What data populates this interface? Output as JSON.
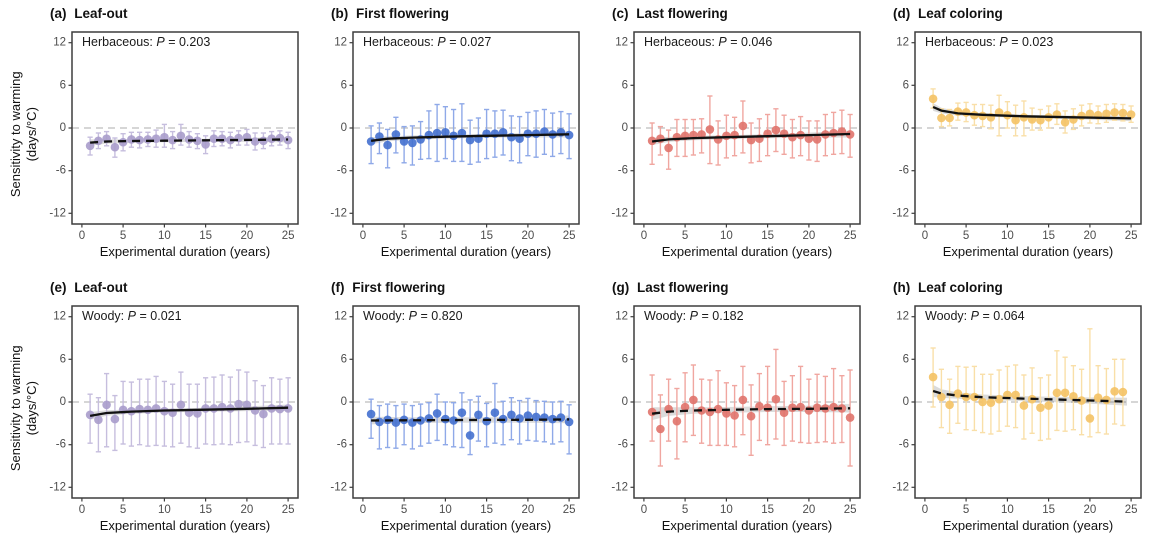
{
  "axes": {
    "xlabel": "Experimental duration (years)",
    "ylabel_line1": "Sensitivity to warming",
    "ylabel_line2": "(days/°C)",
    "x_ticks": [
      0,
      5,
      10,
      15,
      20,
      25
    ],
    "y_ticks": [
      12,
      6,
      0,
      -6,
      -12
    ],
    "xlim": [
      -1.2,
      26.2
    ],
    "ylim": [
      -13.5,
      13.5
    ],
    "zero_line_color": "#bdbdbd",
    "border_color": "#3d3d3d",
    "tick_text_color": "#4d4d4d",
    "trend_color": "#111111",
    "band_color": "rgba(110,110,110,0.25)"
  },
  "chart_data": [
    {
      "type": "scatter",
      "panel_label": "(a)",
      "title": "Leaf-out",
      "annotation": {
        "group": "Herbaceous:",
        "p_label": "P",
        "eq": "=",
        "p_value": "0.203"
      },
      "colors": {
        "point": "#a89ccb",
        "bar": "#c6bede"
      },
      "trend": {
        "style": "dashed",
        "points": [
          [
            1,
            -2.05,
            0.45
          ],
          [
            3,
            -1.9,
            0.3
          ],
          [
            6,
            -1.83,
            0.25
          ],
          [
            10,
            -1.78,
            0.22
          ],
          [
            15,
            -1.73,
            0.22
          ],
          [
            20,
            -1.68,
            0.28
          ],
          [
            25,
            -1.62,
            0.4
          ]
        ]
      },
      "x": [
        1,
        2,
        3,
        4,
        5,
        6,
        7,
        8,
        9,
        10,
        11,
        12,
        13,
        14,
        15,
        16,
        17,
        18,
        19,
        20,
        21,
        22,
        23,
        24,
        25
      ],
      "y": [
        -2.5,
        -1.8,
        -1.5,
        -2.7,
        -2.0,
        -1.6,
        -1.7,
        -1.6,
        -1.5,
        -1.3,
        -1.7,
        -1.1,
        -1.6,
        -1.8,
        -2.3,
        -1.5,
        -1.5,
        -1.7,
        -1.4,
        -1.3,
        -1.9,
        -1.8,
        -1.5,
        -1.4,
        -1.7
      ],
      "err_up": [
        1.2,
        1.1,
        1.0,
        1.3,
        1.2,
        1.0,
        1.1,
        1.0,
        1.2,
        1.8,
        1.2,
        1.6,
        1.1,
        1.0,
        1.2,
        1.1,
        1.0,
        1.1,
        1.0,
        1.1,
        1.2,
        1.1,
        1.0,
        1.0,
        1.1
      ],
      "err_dn": [
        1.3,
        1.1,
        1.0,
        1.4,
        1.2,
        1.1,
        1.1,
        1.0,
        1.2,
        1.4,
        1.2,
        1.3,
        1.1,
        1.1,
        1.3,
        1.1,
        1.0,
        1.1,
        1.0,
        1.1,
        1.2,
        1.1,
        1.0,
        1.0,
        1.2
      ]
    },
    {
      "type": "scatter",
      "panel_label": "(b)",
      "title": "First flowering",
      "annotation": {
        "group": "Herbaceous:",
        "p_label": "P",
        "eq": "=",
        "p_value": "0.027"
      },
      "colors": {
        "point": "#4470cf",
        "bar": "#8fa9e8"
      },
      "trend": {
        "style": "solid",
        "points": [
          [
            1,
            -1.8,
            0.5
          ],
          [
            3,
            -1.5,
            0.35
          ],
          [
            6,
            -1.35,
            0.3
          ],
          [
            10,
            -1.22,
            0.27
          ],
          [
            15,
            -1.1,
            0.27
          ],
          [
            20,
            -1.0,
            0.33
          ],
          [
            25,
            -0.88,
            0.45
          ]
        ]
      },
      "x": [
        1,
        2,
        3,
        4,
        5,
        6,
        7,
        8,
        9,
        10,
        11,
        12,
        13,
        14,
        15,
        16,
        17,
        18,
        19,
        20,
        21,
        22,
        23,
        24,
        25
      ],
      "y": [
        -1.9,
        -1.2,
        -2.4,
        -0.9,
        -1.9,
        -2.1,
        -1.6,
        -1.0,
        -0.7,
        -0.6,
        -1.1,
        -0.7,
        -1.7,
        -1.5,
        -0.8,
        -0.8,
        -0.6,
        -1.3,
        -1.5,
        -0.8,
        -0.8,
        -0.5,
        -0.9,
        -0.6,
        -1.0
      ],
      "err_up": [
        2.2,
        1.9,
        2.2,
        2.4,
        2.1,
        2.4,
        2.5,
        3.4,
        4.0,
        3.6,
        3.7,
        4.1,
        2.8,
        2.9,
        3.4,
        3.2,
        3.1,
        3.0,
        3.1,
        3.0,
        3.2,
        3.1,
        3.0,
        2.9,
        3.0
      ],
      "err_dn": [
        3.1,
        2.4,
        3.2,
        2.6,
        3.0,
        3.1,
        2.8,
        3.3,
        4.0,
        3.7,
        3.6,
        4.0,
        3.4,
        3.3,
        3.5,
        3.3,
        3.2,
        3.3,
        3.4,
        3.1,
        3.3,
        3.2,
        3.1,
        3.0,
        3.3
      ]
    },
    {
      "type": "scatter",
      "panel_label": "(c)",
      "title": "Last flowering",
      "annotation": {
        "group": "Herbaceous:",
        "p_label": "P",
        "eq": "=",
        "p_value": "0.046"
      },
      "colors": {
        "point": "#e0736b",
        "bar": "#f0a6a0"
      },
      "trend": {
        "style": "solid",
        "points": [
          [
            1,
            -1.9,
            0.5
          ],
          [
            3,
            -1.6,
            0.35
          ],
          [
            6,
            -1.42,
            0.3
          ],
          [
            10,
            -1.3,
            0.28
          ],
          [
            15,
            -1.15,
            0.28
          ],
          [
            20,
            -1.0,
            0.35
          ],
          [
            25,
            -0.85,
            0.48
          ]
        ]
      },
      "x": [
        1,
        2,
        3,
        4,
        5,
        6,
        7,
        8,
        9,
        10,
        11,
        12,
        13,
        14,
        15,
        16,
        17,
        18,
        19,
        20,
        21,
        22,
        23,
        24,
        25
      ],
      "y": [
        -1.8,
        -1.5,
        -2.8,
        -1.3,
        -1.1,
        -1.0,
        -0.9,
        -0.2,
        -1.6,
        -1.1,
        -1.0,
        0.3,
        -1.7,
        -1.5,
        -0.8,
        -0.3,
        -0.8,
        -1.3,
        -1.0,
        -1.5,
        -1.6,
        -0.9,
        -0.7,
        -0.5,
        -0.9
      ],
      "err_up": [
        2.5,
        1.7,
        2.5,
        2.5,
        2.3,
        2.2,
        2.2,
        4.7,
        2.6,
        2.9,
        2.5,
        3.5,
        2.4,
        2.8,
        2.7,
        3.0,
        2.6,
        2.5,
        2.6,
        2.5,
        2.6,
        2.8,
        2.9,
        3.0,
        2.8
      ],
      "err_dn": [
        3.3,
        2.3,
        3.0,
        2.7,
        2.9,
        2.8,
        2.6,
        4.8,
        3.6,
        3.1,
        2.9,
        3.8,
        3.2,
        3.2,
        3.1,
        3.0,
        2.9,
        2.9,
        2.9,
        3.0,
        3.1,
        3.0,
        3.0,
        3.1,
        3.2
      ]
    },
    {
      "type": "scatter",
      "panel_label": "(d)",
      "title": "Leaf coloring",
      "annotation": {
        "group": "Herbaceous:",
        "p_label": "P",
        "eq": "=",
        "p_value": "0.023"
      },
      "colors": {
        "point": "#f4c264",
        "bar": "#f9dfa8"
      },
      "trend": {
        "style": "solid",
        "points": [
          [
            1,
            2.95,
            0.55
          ],
          [
            2,
            2.45,
            0.4
          ],
          [
            4,
            2.05,
            0.3
          ],
          [
            7,
            1.85,
            0.25
          ],
          [
            12,
            1.65,
            0.22
          ],
          [
            18,
            1.5,
            0.25
          ],
          [
            25,
            1.35,
            0.38
          ]
        ]
      },
      "x": [
        1,
        2,
        3,
        4,
        5,
        6,
        7,
        8,
        9,
        10,
        11,
        12,
        13,
        14,
        15,
        16,
        17,
        18,
        19,
        20,
        21,
        22,
        23,
        24,
        25
      ],
      "y": [
        4.1,
        1.4,
        1.4,
        2.3,
        2.2,
        1.8,
        1.7,
        1.5,
        2.2,
        1.8,
        1.1,
        1.5,
        1.2,
        1.1,
        1.5,
        1.9,
        0.8,
        1.2,
        1.7,
        2.0,
        1.8,
        2.0,
        2.2,
        2.1,
        1.9
      ],
      "err_up": [
        1.4,
        1.3,
        1.2,
        1.2,
        1.4,
        1.5,
        1.6,
        1.7,
        2.4,
        1.9,
        2.1,
        2.3,
        1.6,
        1.5,
        1.6,
        1.5,
        1.6,
        1.5,
        1.5,
        1.4,
        1.3,
        1.3,
        1.2,
        1.2,
        1.2
      ],
      "err_dn": [
        1.3,
        1.2,
        1.1,
        1.2,
        1.3,
        1.4,
        1.5,
        1.6,
        3.3,
        1.8,
        2.2,
        2.6,
        1.5,
        1.4,
        1.5,
        1.4,
        1.5,
        1.4,
        1.4,
        1.3,
        1.2,
        1.2,
        1.1,
        1.1,
        1.1
      ]
    },
    {
      "type": "scatter",
      "panel_label": "(e)",
      "title": "Leaf-out",
      "annotation": {
        "group": "Woody:",
        "p_label": "P",
        "eq": "=",
        "p_value": "0.021"
      },
      "colors": {
        "point": "#a89ccb",
        "bar": "#c6bede"
      },
      "trend": {
        "style": "solid",
        "points": [
          [
            1,
            -1.95,
            0.55
          ],
          [
            3,
            -1.55,
            0.38
          ],
          [
            6,
            -1.35,
            0.3
          ],
          [
            10,
            -1.2,
            0.27
          ],
          [
            15,
            -1.08,
            0.27
          ],
          [
            20,
            -0.95,
            0.33
          ],
          [
            25,
            -0.8,
            0.45
          ]
        ]
      },
      "x": [
        1,
        2,
        3,
        4,
        5,
        6,
        7,
        8,
        9,
        10,
        11,
        12,
        13,
        14,
        15,
        16,
        17,
        18,
        19,
        20,
        21,
        22,
        23,
        24,
        25
      ],
      "y": [
        -1.8,
        -2.5,
        -0.4,
        -2.4,
        -1.1,
        -1.3,
        -1.0,
        -1.1,
        -0.9,
        -1.3,
        -1.5,
        -0.4,
        -1.5,
        -1.6,
        -0.9,
        -0.9,
        -0.7,
        -0.9,
        -0.3,
        -0.4,
        -1.2,
        -1.7,
        -0.9,
        -1.0,
        -0.9
      ],
      "err_up": [
        2.9,
        3.1,
        4.4,
        3.3,
        4.0,
        4.1,
        4.2,
        4.3,
        4.5,
        4.2,
        4.0,
        4.6,
        4.0,
        4.1,
        4.3,
        4.4,
        4.5,
        4.4,
        4.8,
        4.6,
        4.2,
        4.0,
        4.3,
        4.2,
        4.3
      ],
      "err_dn": [
        4.0,
        4.5,
        5.9,
        4.4,
        4.8,
        4.9,
        5.0,
        5.1,
        5.2,
        4.9,
        4.8,
        5.4,
        4.8,
        4.9,
        5.0,
        5.1,
        5.2,
        5.1,
        5.4,
        5.2,
        4.9,
        4.7,
        5.0,
        4.9,
        5.0
      ]
    },
    {
      "type": "scatter",
      "panel_label": "(f)",
      "title": "First flowering",
      "annotation": {
        "group": "Woody:",
        "p_label": "P",
        "eq": "=",
        "p_value": "0.820"
      },
      "colors": {
        "point": "#4470cf",
        "bar": "#8fa9e8"
      },
      "trend": {
        "style": "dashed",
        "points": [
          [
            1,
            -2.6,
            0.55
          ],
          [
            5,
            -2.57,
            0.42
          ],
          [
            10,
            -2.55,
            0.38
          ],
          [
            15,
            -2.52,
            0.38
          ],
          [
            20,
            -2.5,
            0.42
          ],
          [
            25,
            -2.45,
            0.55
          ]
        ]
      },
      "x": [
        1,
        2,
        3,
        4,
        5,
        6,
        7,
        8,
        9,
        10,
        11,
        12,
        13,
        14,
        15,
        16,
        17,
        18,
        19,
        20,
        21,
        22,
        23,
        24,
        25
      ],
      "y": [
        -1.7,
        -2.8,
        -2.5,
        -2.9,
        -2.5,
        -2.9,
        -2.6,
        -2.3,
        -1.6,
        -2.4,
        -2.6,
        -1.5,
        -4.7,
        -1.8,
        -2.7,
        -1.5,
        -2.4,
        -1.8,
        -2.3,
        -1.9,
        -2.1,
        -2.2,
        -2.4,
        -2.2,
        -2.8
      ],
      "err_up": [
        2.1,
        2.3,
        2.2,
        2.4,
        2.2,
        2.4,
        2.3,
        2.2,
        2.7,
        2.4,
        2.5,
        2.8,
        5.0,
        2.6,
        2.5,
        4.1,
        2.5,
        2.4,
        2.5,
        2.4,
        2.3,
        2.3,
        2.4,
        2.3,
        2.4
      ],
      "err_dn": [
        3.4,
        3.8,
        3.9,
        3.6,
        3.5,
        3.7,
        3.6,
        3.5,
        3.8,
        3.6,
        3.7,
        4.9,
        2.7,
        3.7,
        3.6,
        4.3,
        3.6,
        3.5,
        3.6,
        3.5,
        3.4,
        3.4,
        3.5,
        3.4,
        4.5
      ]
    },
    {
      "type": "scatter",
      "panel_label": "(g)",
      "title": "Last flowering",
      "annotation": {
        "group": "Woody:",
        "p_label": "P",
        "eq": "=",
        "p_value": "0.182"
      },
      "colors": {
        "point": "#e0736b",
        "bar": "#f0a6a0"
      },
      "trend": {
        "style": "dashed",
        "points": [
          [
            1,
            -1.65,
            0.9
          ],
          [
            3,
            -1.35,
            0.6
          ],
          [
            6,
            -1.2,
            0.45
          ],
          [
            10,
            -1.1,
            0.4
          ],
          [
            15,
            -1.0,
            0.4
          ],
          [
            20,
            -0.95,
            0.45
          ],
          [
            25,
            -0.88,
            0.6
          ]
        ]
      },
      "x": [
        1,
        2,
        3,
        4,
        5,
        6,
        7,
        8,
        9,
        10,
        11,
        12,
        13,
        14,
        15,
        16,
        17,
        18,
        19,
        20,
        21,
        22,
        23,
        24,
        25
      ],
      "y": [
        -1.4,
        -3.8,
        -1.0,
        -2.7,
        -0.7,
        0.3,
        -1.2,
        -1.4,
        -1.0,
        -1.6,
        -1.9,
        0.3,
        -2.0,
        -0.6,
        -0.8,
        0.4,
        -1.5,
        -0.8,
        -0.7,
        -1.2,
        -0.8,
        -0.9,
        -0.7,
        -0.9,
        -2.2
      ],
      "err_up": [
        5.2,
        4.8,
        4.2,
        4.6,
        4.8,
        4.9,
        4.4,
        4.5,
        5.4,
        4.3,
        4.2,
        4.7,
        4.4,
        4.6,
        5.8,
        7.0,
        4.4,
        4.5,
        5.7,
        4.4,
        4.7,
        4.5,
        5.4,
        4.6,
        6.7
      ],
      "err_dn": [
        4.1,
        5.2,
        4.5,
        5.3,
        4.9,
        5.0,
        4.6,
        4.7,
        5.1,
        4.5,
        4.4,
        4.9,
        5.5,
        4.8,
        5.2,
        5.6,
        4.6,
        4.7,
        5.0,
        4.6,
        4.9,
        4.7,
        5.1,
        4.8,
        6.8
      ]
    },
    {
      "type": "scatter",
      "panel_label": "(h)",
      "title": "Leaf coloring",
      "annotation": {
        "group": "Woody:",
        "p_label": "P",
        "eq": "=",
        "p_value": "0.064"
      },
      "colors": {
        "point": "#f4c264",
        "bar": "#f9dfa8"
      },
      "trend": {
        "style": "dashed",
        "points": [
          [
            1,
            1.55,
            0.85
          ],
          [
            2,
            1.2,
            0.6
          ],
          [
            4,
            0.9,
            0.45
          ],
          [
            7,
            0.68,
            0.38
          ],
          [
            12,
            0.48,
            0.35
          ],
          [
            18,
            0.28,
            0.4
          ],
          [
            24.5,
            0.05,
            0.55
          ]
        ]
      },
      "x": [
        1,
        2,
        3,
        4,
        5,
        6,
        7,
        8,
        9,
        10,
        11,
        12,
        13,
        14,
        15,
        16,
        17,
        18,
        19,
        20,
        21,
        22,
        23,
        24
      ],
      "y": [
        3.5,
        0.7,
        -0.4,
        1.2,
        0.7,
        0.7,
        0.0,
        -0.1,
        0.4,
        1.0,
        1.0,
        -0.5,
        0.4,
        -0.8,
        -0.5,
        1.3,
        1.3,
        0.8,
        0.2,
        -2.3,
        0.6,
        0.3,
        1.5,
        1.4
      ],
      "err_up": [
        4.1,
        3.9,
        3.6,
        3.8,
        4.2,
        4.3,
        3.9,
        4.0,
        4.1,
        4.0,
        4.2,
        4.3,
        4.4,
        4.2,
        4.3,
        5.9,
        5.0,
        4.3,
        4.4,
        12.6,
        4.5,
        4.4,
        4.5,
        4.6
      ],
      "err_dn": [
        4.2,
        4.3,
        4.0,
        4.2,
        4.6,
        4.7,
        4.3,
        4.4,
        4.5,
        4.4,
        4.6,
        4.7,
        4.8,
        4.6,
        4.7,
        5.3,
        5.4,
        4.7,
        4.8,
        2.6,
        4.9,
        4.8,
        4.6,
        4.7
      ]
    }
  ]
}
